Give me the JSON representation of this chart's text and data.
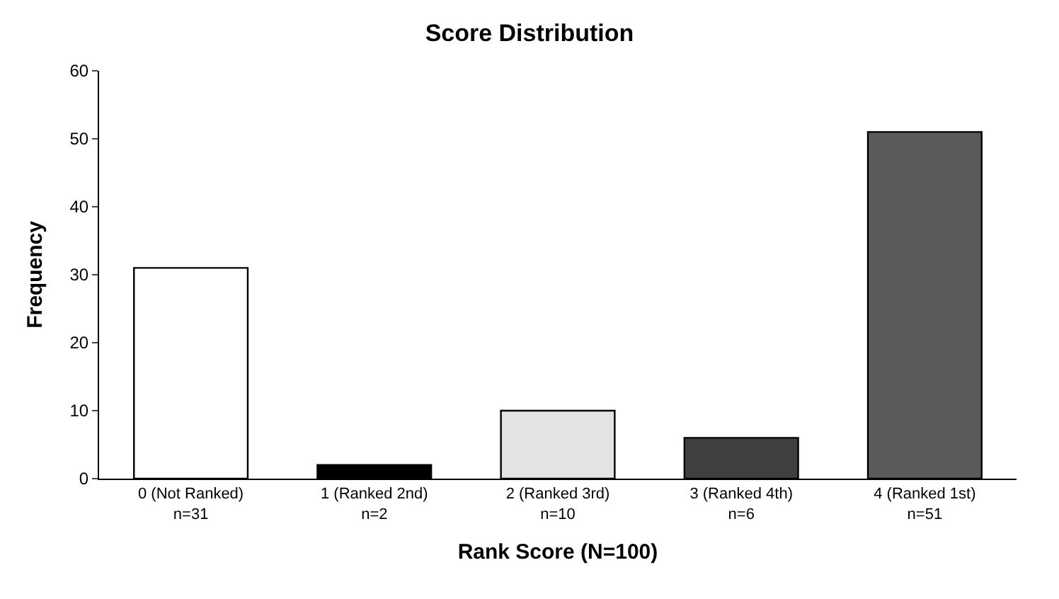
{
  "chart_data": {
    "type": "bar",
    "title": "Score Distribution",
    "xlabel": "Rank Score (N=100)",
    "ylabel": "Frequency",
    "categories": [
      "0 (Not Ranked)\nn=31",
      "1 (Ranked 2nd)\nn=2",
      "2 (Ranked 3rd)\nn=10",
      "3 (Ranked 4th)\nn=6",
      "4 (Ranked 1st)\nn=51"
    ],
    "values": [
      31,
      2,
      10,
      6,
      51
    ],
    "colors": [
      "#ffffff",
      "#000000",
      "#e3e3e3",
      "#404040",
      "#5a5a5a"
    ],
    "ylim": [
      0,
      60
    ],
    "yticks": [
      0,
      10,
      20,
      30,
      40,
      50,
      60
    ]
  }
}
